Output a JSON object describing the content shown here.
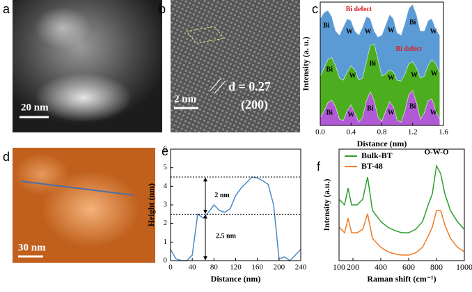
{
  "panels": {
    "a": {
      "label": "a",
      "scale_bar": "20 nm"
    },
    "b": {
      "label": "b",
      "scale_bar": "2 nm",
      "spacing": "d = 0.27",
      "plane": "(200)"
    },
    "d": {
      "label": "d",
      "scale_bar": "30 nm"
    }
  },
  "chart_data": [
    {
      "type": "area",
      "label": "c",
      "x_label": "Distance (nm)",
      "y_label": "Intensity (a. u.)",
      "x": [
        0,
        0.05,
        0.1,
        0.15,
        0.2,
        0.25,
        0.3,
        0.35,
        0.4,
        0.45,
        0.5,
        0.55,
        0.6,
        0.65,
        0.7,
        0.75,
        0.8,
        0.85,
        0.9,
        0.95,
        1.0,
        1.05,
        1.1,
        1.15,
        1.2,
        1.25,
        1.3,
        1.35,
        1.4,
        1.45,
        1.5,
        1.55
      ],
      "xlim": [
        0,
        1.6
      ],
      "xticks": [
        {
          "value": 0,
          "label": "0.0"
        },
        0.4,
        0.8,
        1.2,
        1.6
      ],
      "ylim": [
        0,
        3
      ],
      "series": [
        {
          "color": "#5b9bd5",
          "values": [
            2.6,
            2.75,
            2.8,
            2.65,
            2.3,
            2.2,
            2.4,
            2.6,
            2.55,
            2.3,
            2.2,
            2.4,
            2.65,
            2.6,
            2.3,
            2.15,
            2.2,
            2.45,
            2.7,
            2.6,
            2.25,
            2.2,
            2.5,
            2.85,
            2.95,
            2.7,
            2.3,
            2.3,
            2.55,
            2.6,
            2.35,
            2.2
          ]
        },
        {
          "color": "#4cae1e",
          "values": [
            1.2,
            1.4,
            1.6,
            1.65,
            1.45,
            1.15,
            1.1,
            1.3,
            1.45,
            1.35,
            1.1,
            1.15,
            1.55,
            1.95,
            1.98,
            1.6,
            1.2,
            1.25,
            1.35,
            1.3,
            1.1,
            1.08,
            1.25,
            1.5,
            1.55,
            1.4,
            1.15,
            1.2,
            1.45,
            1.6,
            1.5,
            1.3
          ]
        },
        {
          "color": "#b05ad6",
          "values": [
            0.2,
            0.35,
            0.55,
            0.62,
            0.45,
            0.15,
            0.12,
            0.35,
            0.5,
            0.3,
            0.08,
            0.2,
            0.6,
            0.82,
            0.6,
            0.2,
            0.1,
            0.35,
            0.58,
            0.45,
            0.12,
            0.08,
            0.35,
            0.75,
            0.85,
            0.55,
            0.15,
            0.3,
            0.6,
            0.65,
            0.35,
            0.15
          ]
        }
      ],
      "annotations": [
        {
          "text": "Bi",
          "x": 0.08,
          "y": 2.42
        },
        {
          "text": "W",
          "x": 0.38,
          "y": 2.28
        },
        {
          "text": "W",
          "x": 0.62,
          "y": 2.28
        },
        {
          "text": "W",
          "x": 0.92,
          "y": 2.3
        },
        {
          "text": "Bi",
          "x": 1.2,
          "y": 2.5
        },
        {
          "text": "W",
          "x": 1.47,
          "y": 2.28
        },
        {
          "text": "Bi defect",
          "x": 0.5,
          "y": 2.82,
          "color": "#d62020"
        },
        {
          "text": "Bi",
          "x": 0.12,
          "y": 1.35
        },
        {
          "text": "W",
          "x": 0.42,
          "y": 1.2
        },
        {
          "text": "Bi",
          "x": 0.68,
          "y": 1.5
        },
        {
          "text": "W",
          "x": 0.92,
          "y": 1.15
        },
        {
          "text": "W",
          "x": 1.22,
          "y": 1.22
        },
        {
          "text": "W",
          "x": 1.48,
          "y": 1.25
        },
        {
          "text": "Bi defect",
          "x": 1.15,
          "y": 1.85,
          "color": "#d62020"
        },
        {
          "text": "Bi",
          "x": 0.12,
          "y": 0.3
        },
        {
          "text": "W",
          "x": 0.4,
          "y": 0.25
        },
        {
          "text": "Bi",
          "x": 0.65,
          "y": 0.4
        },
        {
          "text": "W",
          "x": 0.92,
          "y": 0.3
        },
        {
          "text": "Bi",
          "x": 1.2,
          "y": 0.45
        },
        {
          "text": "W",
          "x": 1.47,
          "y": 0.3
        }
      ]
    },
    {
      "type": "line",
      "label": "e",
      "x_label": "Distance (nm)",
      "y_label": "Height (nm)",
      "x": [
        0,
        10,
        20,
        30,
        40,
        50,
        60,
        70,
        80,
        90,
        100,
        110,
        120,
        130,
        140,
        150,
        160,
        170,
        180,
        190,
        200,
        210,
        220,
        230,
        240
      ],
      "xlim": [
        0,
        240
      ],
      "xticks": [
        0,
        40,
        80,
        120,
        160,
        200,
        240
      ],
      "ylim": [
        0,
        6
      ],
      "yticks": [
        0,
        1,
        2,
        3,
        4,
        5,
        6
      ],
      "series": [
        {
          "color": "#4a8ac4",
          "values": [
            0.6,
            0.1,
            0,
            0,
            0.3,
            2.5,
            2.3,
            2.6,
            3.0,
            2.7,
            2.6,
            2.8,
            3.5,
            3.9,
            4.2,
            4.5,
            4.45,
            4.3,
            4.1,
            3.0,
            0.1,
            0.2,
            0,
            0.3,
            0.6
          ]
        }
      ],
      "hlines": [
        4.5,
        2.5
      ],
      "annotations": [
        {
          "text": "2 nm",
          "x": 95,
          "y": 3.5
        },
        {
          "text": "2.5 nm",
          "x": 102,
          "y": 1.3
        }
      ]
    },
    {
      "type": "line",
      "label": "f",
      "x_label": "Raman shift (cm⁻¹)",
      "y_label": "Intensity (a.u.)",
      "x": [
        100,
        140,
        165,
        190,
        230,
        270,
        305,
        340,
        400,
        450,
        500,
        550,
        600,
        650,
        700,
        740,
        770,
        800,
        830,
        860,
        900,
        950,
        1000
      ],
      "xlim": [
        100,
        1000
      ],
      "xticks": [
        100,
        200,
        400,
        600,
        800,
        1000
      ],
      "ylim": [
        0,
        1
      ],
      "legend": "upper left",
      "series": [
        {
          "name": "Bulk-BT",
          "color": "#2e9e2e",
          "values": [
            0.55,
            0.5,
            0.65,
            0.5,
            0.5,
            0.55,
            0.75,
            0.45,
            0.35,
            0.3,
            0.27,
            0.25,
            0.25,
            0.28,
            0.35,
            0.5,
            0.6,
            0.85,
            0.78,
            0.6,
            0.45,
            0.35,
            0.28
          ]
        },
        {
          "name": "BT-48",
          "color": "#f07a24",
          "values": [
            0.3,
            0.25,
            0.38,
            0.25,
            0.25,
            0.28,
            0.42,
            0.2,
            0.12,
            0.08,
            0.06,
            0.05,
            0.05,
            0.07,
            0.12,
            0.22,
            0.3,
            0.45,
            0.45,
            0.32,
            0.2,
            0.12,
            0.08
          ]
        }
      ],
      "annotations": [
        {
          "text": "O-W-O",
          "x": 800,
          "y": 0.97
        }
      ]
    }
  ]
}
